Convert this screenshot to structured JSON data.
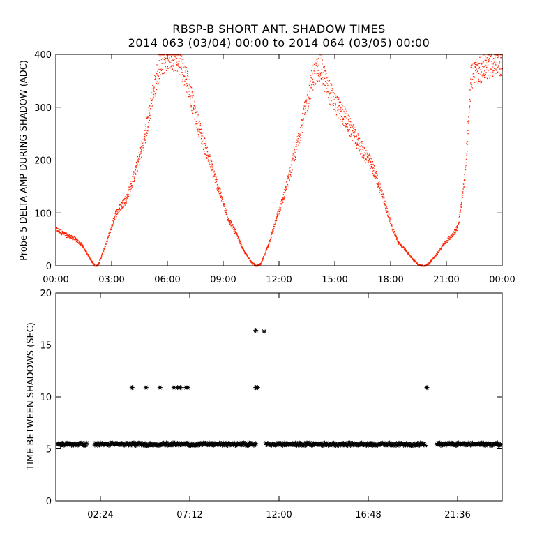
{
  "title": {
    "line1": "RBSP-B SHORT ANT. SHADOW TIMES",
    "line2": "2014 063 (03/04) 00:00 to 2014 064 (03/05) 00:00"
  },
  "colors": {
    "series_top": "#ff2200",
    "series_bottom": "#000000",
    "axes": "#000000"
  },
  "chart_data": [
    {
      "type": "scatter",
      "ylabel": "Probe 5 DELTA AMP DURING SHADOW (ADC)",
      "xlabel": "",
      "x_unit": "hours",
      "xlim": [
        0,
        24
      ],
      "ylim": [
        0,
        400
      ],
      "x_ticks": [
        0,
        3,
        6,
        9,
        12,
        15,
        18,
        21,
        24
      ],
      "x_tick_labels": [
        "00:00",
        "03:00",
        "06:00",
        "09:00",
        "12:00",
        "15:00",
        "18:00",
        "21:00",
        "00:00"
      ],
      "y_ticks": [
        0,
        100,
        200,
        300,
        400
      ],
      "y_tick_labels": [
        "0",
        "100",
        "200",
        "300",
        "400"
      ],
      "marker": "dot",
      "envelope": {
        "x": [
          0,
          0.6,
          1.0,
          1.4,
          1.7,
          2.0,
          2.15,
          2.3,
          2.7,
          3.2,
          3.8,
          4.3,
          4.8,
          5.2,
          5.6,
          6.0,
          6.5,
          7.0,
          7.4,
          7.8,
          8.3,
          8.8,
          9.2,
          9.7,
          10.1,
          10.5,
          10.75,
          11.0,
          11.4,
          11.8,
          12.2,
          12.6,
          13.0,
          13.4,
          13.8,
          14.2,
          14.6,
          15.0,
          15.5,
          16.0,
          16.5,
          17.0,
          17.5,
          18.0,
          18.4,
          18.8,
          19.2,
          19.5,
          19.75,
          20.0,
          20.4,
          20.8,
          21.3,
          21.6,
          21.8,
          22.0,
          22.3,
          22.8,
          23.3,
          24.0
        ],
        "y": [
          70,
          58,
          52,
          40,
          22,
          4,
          0,
          6,
          45,
          100,
          130,
          185,
          250,
          330,
          390,
          400,
          400,
          360,
          300,
          250,
          195,
          140,
          95,
          60,
          28,
          8,
          0,
          4,
          40,
          85,
          130,
          180,
          240,
          300,
          360,
          380,
          340,
          310,
          285,
          250,
          220,
          190,
          140,
          80,
          45,
          30,
          12,
          3,
          0,
          4,
          20,
          40,
          60,
          75,
          120,
          180,
          360,
          375,
          385,
          390
        ]
      }
    },
    {
      "type": "scatter",
      "ylabel": "TIME BETWEEN SHADOWS (SEC)",
      "xlabel": "",
      "x_unit": "hours",
      "xlim": [
        0,
        24
      ],
      "ylim": [
        0,
        20
      ],
      "x_ticks": [
        2.4,
        7.2,
        12.0,
        16.8,
        21.6
      ],
      "x_tick_labels": [
        "02:24",
        "07:12",
        "12:00",
        "16:48",
        "21:36"
      ],
      "y_ticks": [
        0,
        5,
        10,
        15,
        20
      ],
      "y_tick_labels": [
        "0",
        "5",
        "10",
        "15",
        "20"
      ],
      "marker": "asterisk",
      "baseline_value": 5.45,
      "baseline_segments": [
        [
          0.1,
          1.7
        ],
        [
          2.1,
          10.8
        ],
        [
          11.3,
          19.9
        ],
        [
          20.5,
          23.95
        ]
      ],
      "points": [
        {
          "x": 4.1,
          "y": 10.9
        },
        {
          "x": 4.85,
          "y": 10.9
        },
        {
          "x": 5.6,
          "y": 10.9
        },
        {
          "x": 6.35,
          "y": 10.9
        },
        {
          "x": 6.55,
          "y": 10.9
        },
        {
          "x": 6.7,
          "y": 10.9
        },
        {
          "x": 7.0,
          "y": 10.9
        },
        {
          "x": 7.1,
          "y": 10.9
        },
        {
          "x": 10.75,
          "y": 16.4
        },
        {
          "x": 10.75,
          "y": 10.9
        },
        {
          "x": 10.85,
          "y": 10.9
        },
        {
          "x": 11.2,
          "y": 16.3
        },
        {
          "x": 19.95,
          "y": 10.9
        }
      ]
    }
  ]
}
